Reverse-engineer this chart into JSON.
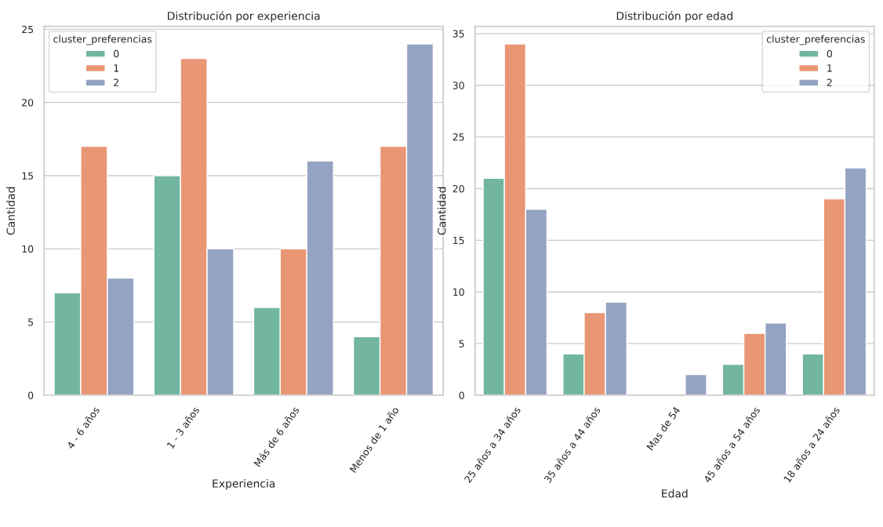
{
  "chart_data": [
    {
      "type": "bar",
      "title": "Distribución por experiencia",
      "xlabel": "Experiencia",
      "ylabel": "Cantidad",
      "legend_title": "cluster_preferencias",
      "legend": "top left",
      "grid": "y",
      "categories": [
        "4 - 6 años",
        "1 - 3 años",
        "Más de 6 años",
        "Menos de 1 año"
      ],
      "series": [
        {
          "name": "0",
          "color": "#72b6a1",
          "values": [
            7,
            15,
            6,
            4
          ]
        },
        {
          "name": "1",
          "color": "#e99675",
          "values": [
            17,
            23,
            10,
            17
          ]
        },
        {
          "name": "2",
          "color": "#95a3c3",
          "values": [
            8,
            10,
            16,
            24
          ]
        }
      ],
      "ylim": [
        0,
        25.2
      ],
      "yticks": [
        0,
        5,
        10,
        15,
        20,
        25
      ]
    },
    {
      "type": "bar",
      "title": "Distribución por edad",
      "xlabel": "Edad",
      "ylabel": "Cantidad",
      "legend_title": "cluster_preferencias",
      "legend": "top right",
      "grid": "y",
      "categories": [
        "25 años a 34 años",
        "35 años a 44 años",
        "Mas de 54",
        "45 años a 54 años",
        "18 años a 24 años"
      ],
      "series": [
        {
          "name": "0",
          "color": "#72b6a1",
          "values": [
            21,
            4,
            0,
            3,
            4
          ]
        },
        {
          "name": "1",
          "color": "#e99675",
          "values": [
            34,
            8,
            0,
            6,
            19
          ]
        },
        {
          "name": "2",
          "color": "#95a3c3",
          "values": [
            18,
            9,
            2,
            7,
            22
          ]
        }
      ],
      "ylim": [
        0,
        35.7
      ],
      "yticks": [
        0,
        5,
        10,
        15,
        20,
        25,
        30,
        35
      ]
    }
  ]
}
